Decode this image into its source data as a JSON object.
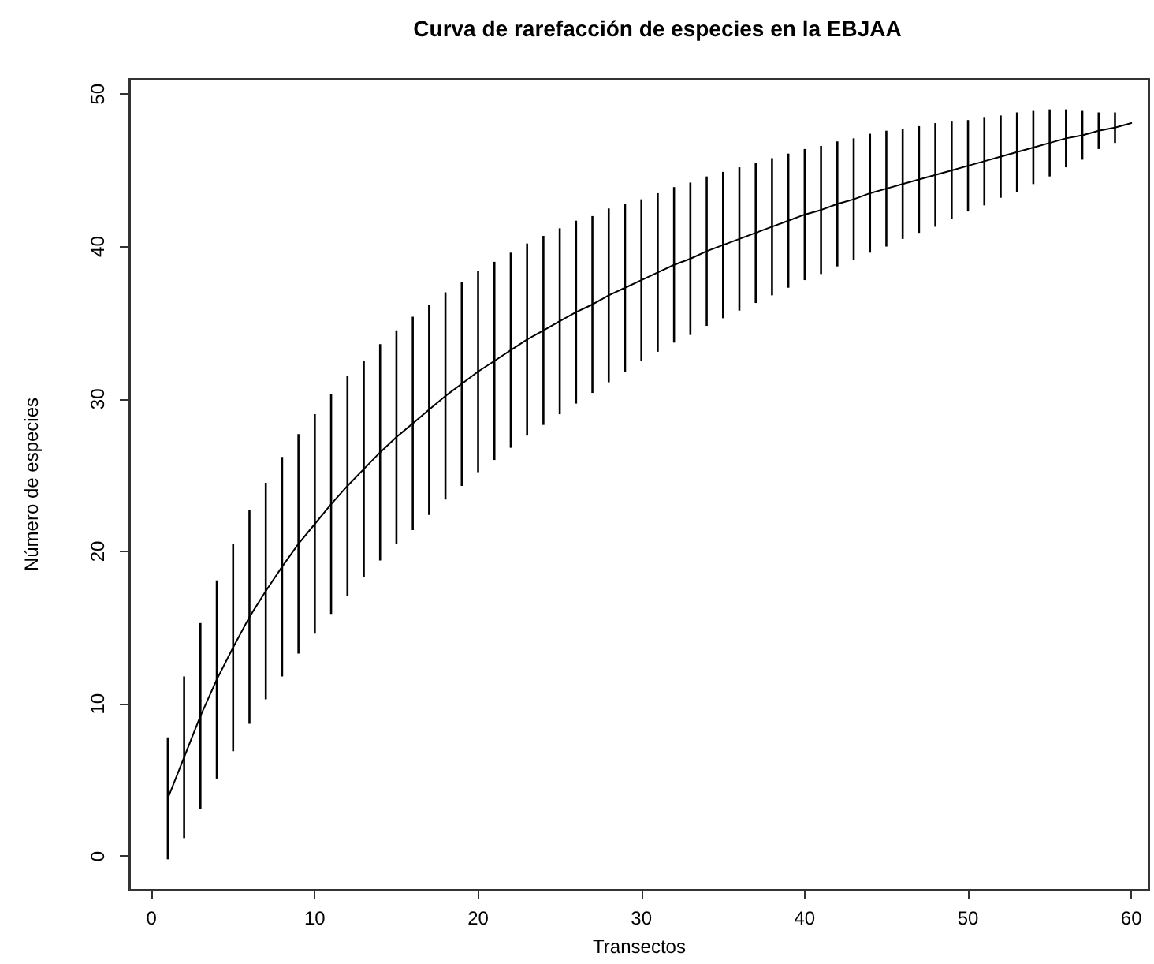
{
  "chart_data": {
    "type": "line",
    "title": "Curva de rarefacción de especies en la EBJAA",
    "xlabel": "Transectos",
    "ylabel": "Número de especies",
    "x": [
      1,
      2,
      3,
      4,
      5,
      6,
      7,
      8,
      9,
      10,
      11,
      12,
      13,
      14,
      15,
      16,
      17,
      18,
      19,
      20,
      21,
      22,
      23,
      24,
      25,
      26,
      27,
      28,
      29,
      30,
      31,
      32,
      33,
      34,
      35,
      36,
      37,
      38,
      39,
      40,
      41,
      42,
      43,
      44,
      45,
      46,
      47,
      48,
      49,
      50,
      51,
      52,
      53,
      54,
      55,
      56,
      57,
      58,
      59,
      60
    ],
    "values": [
      3.8,
      6.5,
      9.2,
      11.6,
      13.7,
      15.7,
      17.4,
      19.0,
      20.5,
      21.8,
      23.1,
      24.3,
      25.4,
      26.5,
      27.5,
      28.4,
      29.3,
      30.2,
      31.0,
      31.8,
      32.5,
      33.2,
      33.9,
      34.5,
      35.1,
      35.7,
      36.2,
      36.8,
      37.3,
      37.8,
      38.3,
      38.8,
      39.2,
      39.7,
      40.1,
      40.5,
      40.9,
      41.3,
      41.7,
      42.1,
      42.4,
      42.8,
      43.1,
      43.5,
      43.8,
      44.1,
      44.4,
      44.7,
      45.0,
      45.3,
      45.6,
      45.9,
      46.2,
      46.5,
      46.8,
      47.1,
      47.3,
      47.6,
      47.8,
      48.1
    ],
    "errors": [
      4.0,
      5.3,
      6.1,
      6.5,
      6.8,
      7.0,
      7.1,
      7.2,
      7.2,
      7.2,
      7.2,
      7.2,
      7.1,
      7.1,
      7.0,
      7.0,
      6.9,
      6.8,
      6.7,
      6.6,
      6.5,
      6.4,
      6.3,
      6.2,
      6.1,
      6.0,
      5.8,
      5.7,
      5.5,
      5.3,
      5.2,
      5.1,
      5.0,
      4.9,
      4.8,
      4.7,
      4.6,
      4.5,
      4.4,
      4.3,
      4.2,
      4.1,
      4.0,
      3.9,
      3.8,
      3.6,
      3.5,
      3.4,
      3.2,
      3.0,
      2.9,
      2.7,
      2.6,
      2.4,
      2.2,
      1.9,
      1.6,
      1.2,
      1.0,
      null
    ],
    "color": "#000000",
    "marker": "none",
    "line_style": "solid",
    "grid": false,
    "xlim": [
      -1.36,
      61.1
    ],
    "xticks": [
      0,
      10,
      20,
      30,
      40,
      50,
      60
    ],
    "ylim": [
      -2.2,
      51
    ],
    "yticks": [
      0,
      10,
      20,
      30,
      40,
      50
    ]
  }
}
